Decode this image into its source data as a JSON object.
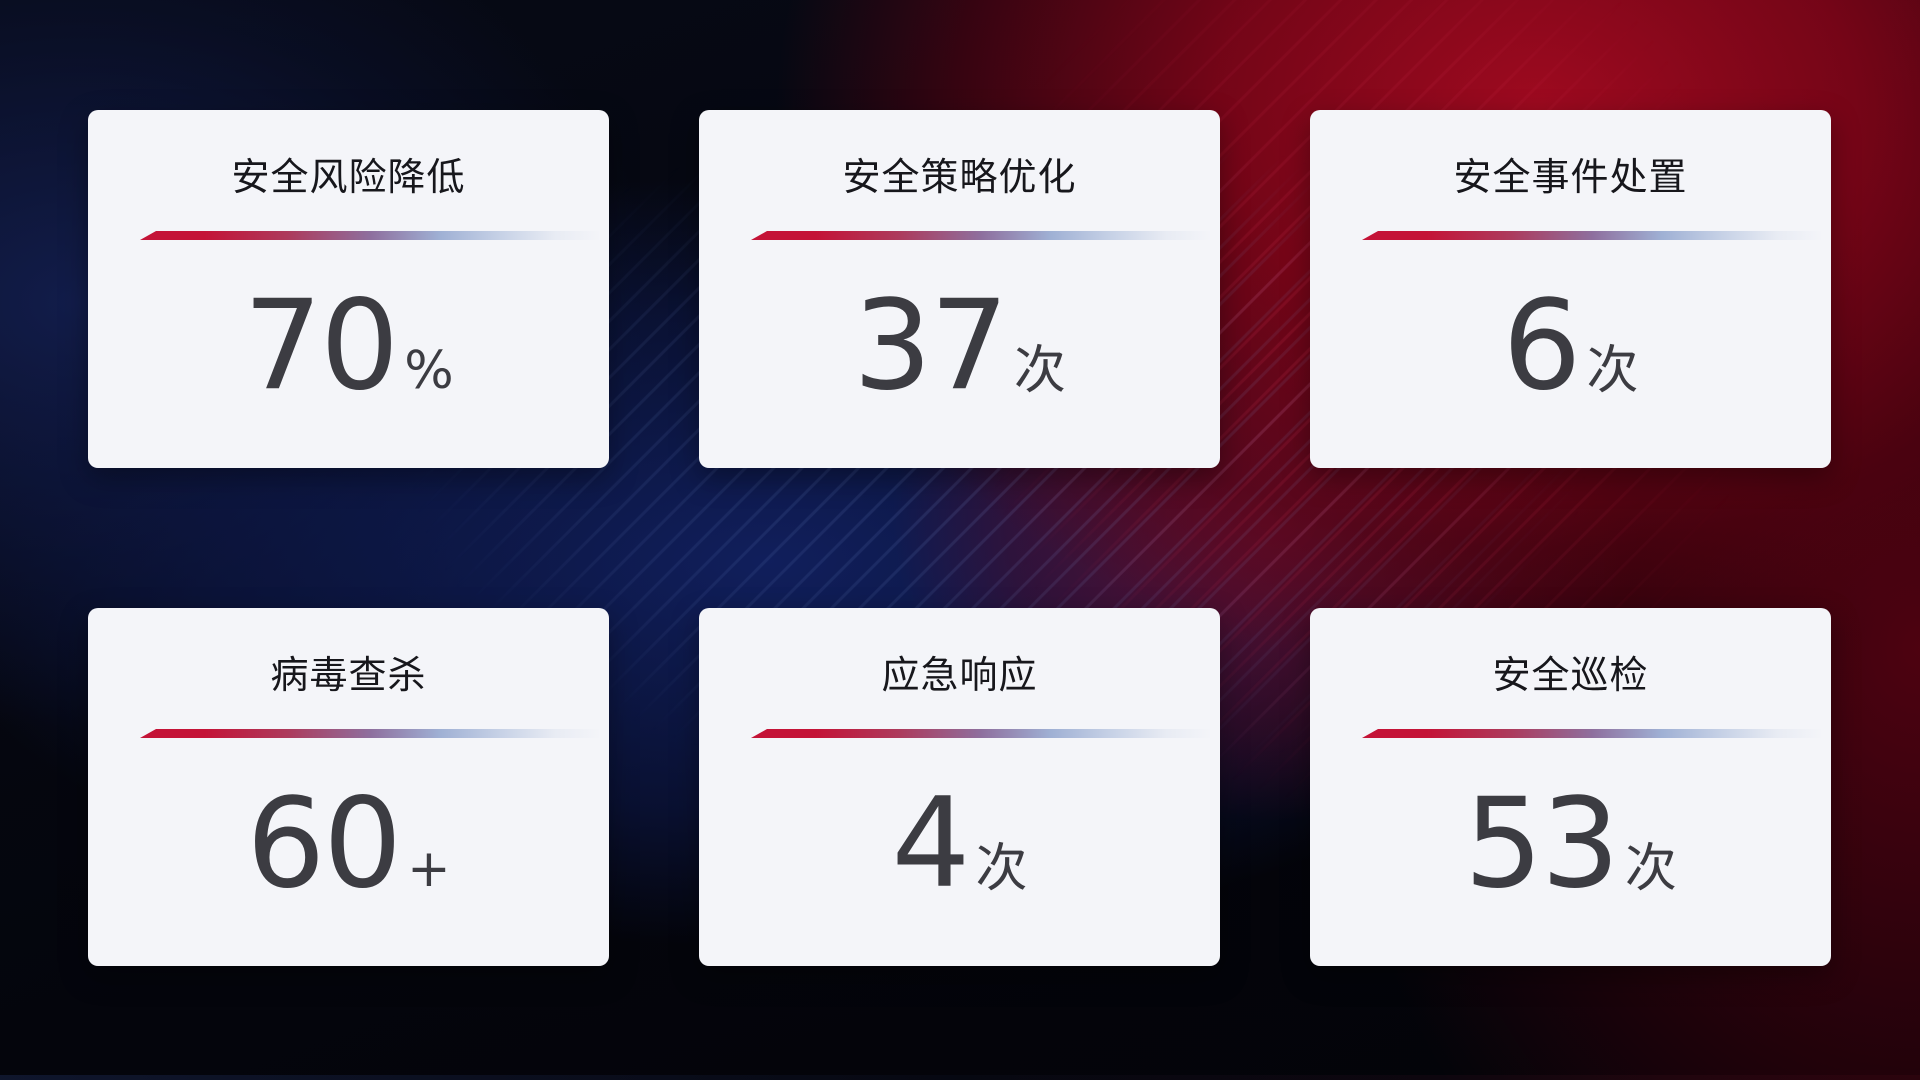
{
  "cards": [
    {
      "title": "安全风险降低",
      "value": "70",
      "unit": "%"
    },
    {
      "title": "安全策略优化",
      "value": "37",
      "unit": "次"
    },
    {
      "title": "安全事件处置",
      "value": "6",
      "unit": "次"
    },
    {
      "title": "病毒查杀",
      "value": "60",
      "unit": "+"
    },
    {
      "title": "应急响应",
      "value": "4",
      "unit": "次"
    },
    {
      "title": "安全巡检",
      "value": "53",
      "unit": "次"
    }
  ],
  "colors": {
    "card_background": "#f4f5f9",
    "title_text": "#17171c",
    "value_text": "#3c3c42",
    "divider_red": "#c41337",
    "divider_blue": "#aebcd9",
    "background_blue": "#11205c",
    "background_red": "#8f0620",
    "background_base": "#04040a"
  }
}
